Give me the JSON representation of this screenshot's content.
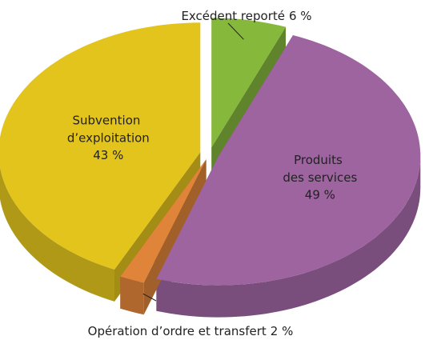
{
  "chart_data": {
    "type": "pie3d",
    "categories": [
      "Excédent reporté",
      "Produits des services",
      "Opération d’ordre et transfert",
      "Subvention d’exploitation"
    ],
    "values": [
      6,
      49,
      2,
      43
    ],
    "value_labels": [
      "6 %",
      "49 %",
      "2 %",
      "43 %"
    ],
    "colors": [
      "#86b83c",
      "#9d649f",
      "#e0843a",
      "#e2c41c"
    ]
  }
}
